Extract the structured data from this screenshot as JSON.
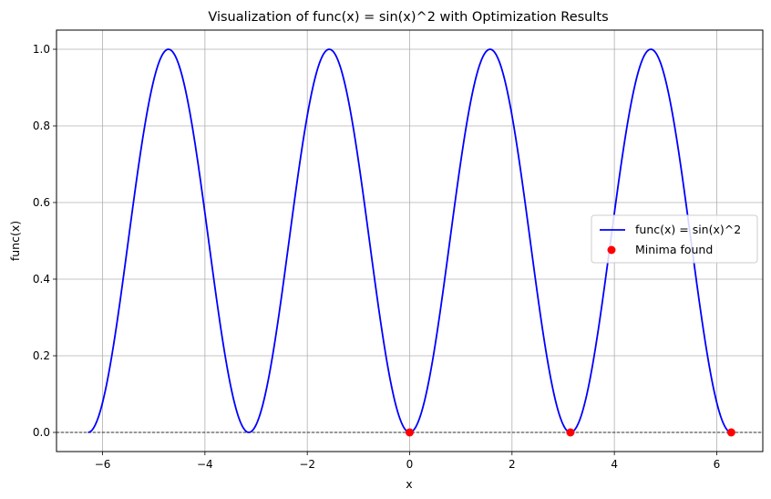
{
  "chart_data": {
    "type": "line",
    "title": "Visualization of func(x) = sin(x)^2 with Optimization Results",
    "xlabel": "x",
    "ylabel": "func(x)",
    "xlim": [
      -6.9,
      6.9
    ],
    "ylim": [
      -0.05,
      1.05
    ],
    "xticks": [
      -6,
      -4,
      -2,
      0,
      2,
      4,
      6
    ],
    "xtick_labels": [
      "−6",
      "−4",
      "−2",
      "0",
      "2",
      "4",
      "6"
    ],
    "yticks": [
      0.0,
      0.2,
      0.4,
      0.6,
      0.8,
      1.0
    ],
    "ytick_labels": [
      "0.0",
      "0.2",
      "0.4",
      "0.6",
      "0.8",
      "1.0"
    ],
    "grid": true,
    "reference_line": {
      "y": 0,
      "style": "dashed",
      "color": "#000000"
    },
    "legend": {
      "position": "center-right"
    },
    "series": [
      {
        "name": "func(x) = sin(x)^2",
        "kind": "line",
        "function": "sin(x)^2",
        "x_range": [
          -6.283,
          6.283
        ],
        "color": "#0000ff"
      },
      {
        "name": "Minima found",
        "kind": "scatter",
        "x": [
          0.0,
          3.1416,
          6.2832
        ],
        "y": [
          0.0,
          0.0,
          0.0
        ],
        "color": "#ff0000"
      }
    ]
  }
}
